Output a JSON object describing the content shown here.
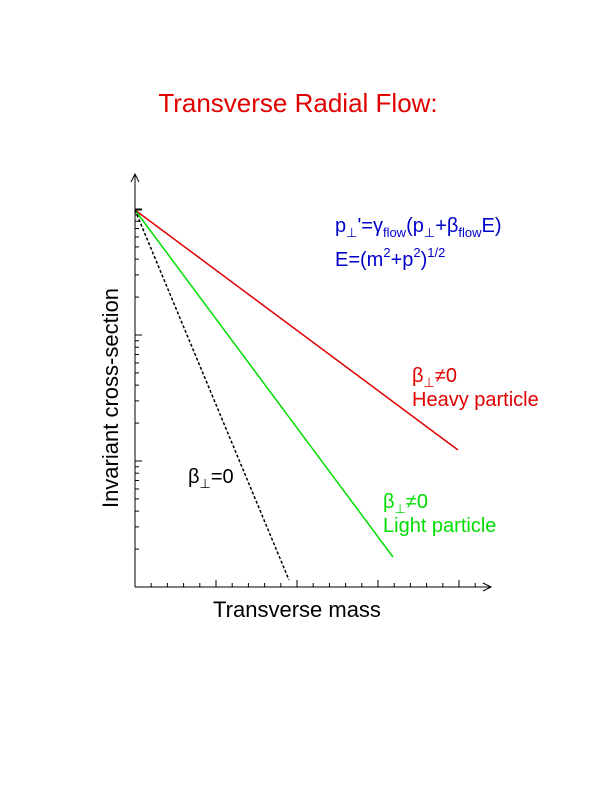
{
  "title": "Transverse Radial Flow:",
  "x_axis_label": "Transverse mass",
  "y_axis_label": "Invariant cross-section",
  "formula": {
    "line1": [
      "p",
      "⊥",
      "'=γ",
      "flow",
      "(p",
      "⊥",
      "+β",
      "flow",
      "E)"
    ],
    "line2": [
      "E=(m",
      "2",
      "+p",
      "2",
      ")",
      "1/2"
    ]
  },
  "curves": [
    {
      "symbol": [
        "β",
        "⊥",
        "≠0"
      ],
      "name": "Heavy particle"
    },
    {
      "symbol": [
        "β",
        "⊥",
        "≠0"
      ],
      "name": "Light particle"
    },
    {
      "symbol": [
        "β",
        "⊥",
        "=0"
      ]
    }
  ]
}
